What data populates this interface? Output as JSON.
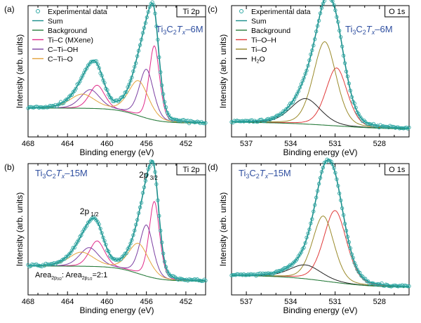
{
  "chart_data": [
    {
      "type": "line",
      "panel_label": "(a)",
      "corner_label": "Ti 2p",
      "xlabel": "Binding energy (eV)",
      "ylabel": "Intensity (arb. units)",
      "xlim": [
        468,
        450
      ],
      "xticks": [
        468,
        464,
        460,
        456,
        452
      ],
      "sample": {
        "main": "Ti",
        "s1": "3",
        "mid": "C",
        "s2": "2",
        "italic": "T",
        "s3": "x",
        "tail": "–6M"
      },
      "legend": {
        "experimental": "Experimental data",
        "sum": "Sum",
        "background": "Background",
        "components": [
          "Ti–C (MXene)",
          "C–Ti–OH",
          "C–Ti–O"
        ]
      },
      "bg": {
        "left": 0.2,
        "right": 0.07,
        "mid": 456.8,
        "w": 1.2
      },
      "peaks": [
        {
          "name": "Ti–C (MXene)",
          "role": "comp0",
          "center": 455.2,
          "height": 0.64,
          "width": 0.55
        },
        {
          "name": "Ti–C (MXene)",
          "role": "comp0",
          "center": 461.0,
          "height": 0.2,
          "width": 0.8
        },
        {
          "name": "C–Ti–OH",
          "role": "comp1",
          "center": 456.0,
          "height": 0.42,
          "width": 0.75
        },
        {
          "name": "C–Ti–OH",
          "role": "comp1",
          "center": 461.7,
          "height": 0.16,
          "width": 1.0
        },
        {
          "name": "C–Ti–O",
          "role": "comp2",
          "center": 456.8,
          "height": 0.3,
          "width": 1.05
        },
        {
          "name": "C–Ti–O",
          "role": "comp2",
          "center": 462.5,
          "height": 0.12,
          "width": 1.3
        }
      ],
      "ymax": 1.0
    },
    {
      "type": "line",
      "panel_label": "(c)",
      "corner_label": "O 1s",
      "xlabel": "Binding energy (eV)",
      "ylabel": "Intensity (arb. units)",
      "xlim": [
        538,
        526
      ],
      "xticks": [
        537,
        534,
        531,
        528
      ],
      "sample": {
        "main": "Ti",
        "s1": "3",
        "mid": "C",
        "s2": "2",
        "italic": "T",
        "s3": "x",
        "tail": "–6M"
      },
      "legend": {
        "experimental": "Experimental  data",
        "sum": "Sum",
        "background": "Background",
        "components": [
          "Ti–O–H",
          "Ti–O",
          "H2O"
        ]
      },
      "bg": {
        "left": 0.08,
        "right": 0.015,
        "mid": 531.0,
        "w": 2.0
      },
      "peaks": [
        {
          "name": "Ti–O–H",
          "role": "comp0",
          "center": 530.9,
          "height": 0.5,
          "width": 0.75
        },
        {
          "name": "Ti–O",
          "role": "comp1",
          "center": 531.7,
          "height": 0.72,
          "width": 0.8
        },
        {
          "name": "H2O",
          "role": "comp2",
          "center": 533.0,
          "height": 0.22,
          "width": 1.05
        }
      ],
      "ymax": 1.0
    },
    {
      "type": "line",
      "panel_label": "(b)",
      "corner_label": "Ti 2p",
      "xlabel": "Binding energy (eV)",
      "ylabel": "Intensity (arb. units)",
      "xlim": [
        468,
        450
      ],
      "xticks": [
        468,
        464,
        460,
        456,
        452
      ],
      "sample": {
        "main": "Ti",
        "s1": "3",
        "mid": "C",
        "s2": "2",
        "italic": "T",
        "s3": "x",
        "tail": "–15M"
      },
      "annotations": {
        "peak_2p32": {
          "base": "2p",
          "sub": "3/2"
        },
        "peak_2p12": {
          "base": "2p",
          "sub": "1/2"
        },
        "area_ratio": {
          "a": "Area",
          "a_sub": "2p",
          "a_sub2": "3/2",
          "sep": ": Area",
          "b_sub": "2p",
          "b_sub2": "1/2",
          "tail": "=2:1"
        }
      },
      "bg": {
        "left": 0.2,
        "right": 0.07,
        "mid": 456.8,
        "w": 1.2
      },
      "peaks": [
        {
          "name": "Ti–C (MXene)",
          "role": "comp0",
          "center": 455.2,
          "height": 0.66,
          "width": 0.55
        },
        {
          "name": "Ti–C (MXene)",
          "role": "comp0",
          "center": 461.0,
          "height": 0.22,
          "width": 0.8
        },
        {
          "name": "C–Ti–OH",
          "role": "comp1",
          "center": 456.0,
          "height": 0.44,
          "width": 0.7
        },
        {
          "name": "C–Ti–OH",
          "role": "comp1",
          "center": 461.8,
          "height": 0.16,
          "width": 1.0
        },
        {
          "name": "C–Ti–O",
          "role": "comp2",
          "center": 456.8,
          "height": 0.26,
          "width": 1.05
        },
        {
          "name": "C–Ti–O",
          "role": "comp2",
          "center": 462.6,
          "height": 0.12,
          "width": 1.3
        }
      ],
      "ymax": 1.0
    },
    {
      "type": "line",
      "panel_label": "(d)",
      "corner_label": "O 1s",
      "xlabel": "Binding energy (eV)",
      "ylabel": "Intensity (arb. units)",
      "xlim": [
        538,
        526
      ],
      "xticks": [
        537,
        534,
        531,
        528
      ],
      "sample": {
        "main": "Ti",
        "s1": "3",
        "mid": "C",
        "s2": "2",
        "italic": "T",
        "s3": "x",
        "tail": "–15M"
      },
      "bg": {
        "left": 0.12,
        "right": 0.015,
        "mid": 531.5,
        "w": 1.6
      },
      "peaks": [
        {
          "name": "Ti–O–H",
          "role": "comp0",
          "center": 531.0,
          "height": 0.62,
          "width": 0.8
        },
        {
          "name": "Ti–O",
          "role": "comp1",
          "center": 531.8,
          "height": 0.56,
          "width": 0.75
        },
        {
          "name": "H2O",
          "role": "comp2",
          "center": 533.0,
          "height": 0.12,
          "width": 1.1
        }
      ],
      "ymax": 1.0
    }
  ],
  "colors": {
    "experimental": "#2ea7a3",
    "sum": "#1a8d8a",
    "background": "#2b7d3e",
    "ti2p": [
      "#e02a8a",
      "#7b3fa2",
      "#e3a33c"
    ],
    "o1s": [
      "#e03a3a",
      "#9a8a2a",
      "#222222"
    ],
    "sample_label": "#2f4fa0"
  }
}
